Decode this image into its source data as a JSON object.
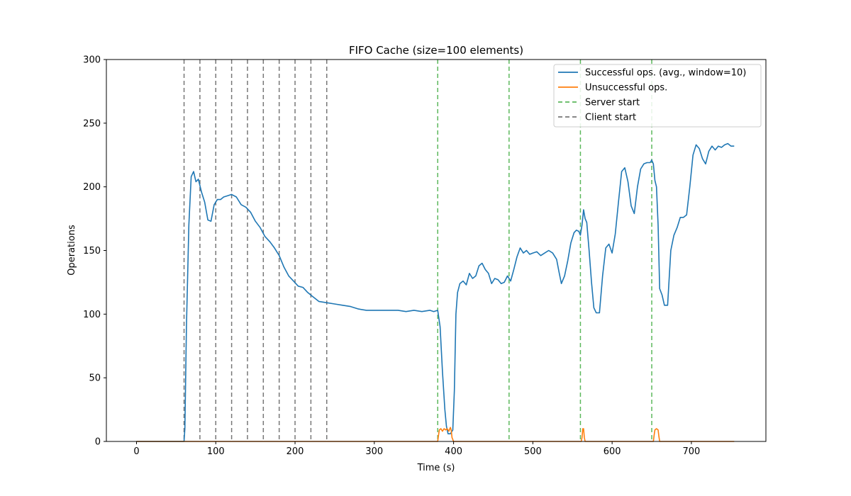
{
  "chart_data": {
    "type": "line",
    "title": "FIFO Cache (size=100 elements)",
    "xlabel": "Time (s)",
    "ylabel": "Operations",
    "xlim": [
      -38,
      794
    ],
    "ylim": [
      0,
      300
    ],
    "xticks": [
      0,
      100,
      200,
      300,
      400,
      500,
      600,
      700
    ],
    "yticks": [
      0,
      50,
      100,
      150,
      200,
      250,
      300
    ],
    "grid": false,
    "legend_position": "upper-right",
    "series": [
      {
        "name": "Successful ops. (avg., window=10)",
        "color": "#1f77b4",
        "style": "solid",
        "x": [
          0,
          60,
          61,
          63,
          66,
          69,
          72,
          75,
          78,
          82,
          86,
          90,
          94,
          98,
          102,
          106,
          110,
          115,
          120,
          126,
          132,
          138,
          144,
          150,
          156,
          162,
          168,
          174,
          180,
          186,
          192,
          198,
          204,
          210,
          216,
          222,
          230,
          240,
          250,
          260,
          270,
          280,
          290,
          300,
          310,
          320,
          330,
          340,
          350,
          360,
          370,
          375,
          380,
          383,
          386,
          389,
          391,
          393,
          396,
          399,
          401,
          403,
          405,
          408,
          412,
          416,
          420,
          424,
          428,
          432,
          436,
          440,
          444,
          448,
          452,
          456,
          460,
          464,
          468,
          472,
          476,
          480,
          484,
          488,
          492,
          496,
          500,
          505,
          510,
          515,
          520,
          525,
          530,
          533,
          536,
          540,
          544,
          548,
          552,
          555,
          558,
          560,
          562,
          564,
          566,
          568,
          571,
          574,
          577,
          580,
          584,
          588,
          592,
          596,
          600,
          604,
          608,
          612,
          616,
          620,
          624,
          628,
          632,
          636,
          640,
          644,
          648,
          650,
          652,
          654,
          656,
          658,
          660,
          663,
          666,
          670,
          674,
          678,
          682,
          686,
          690,
          694,
          698,
          702,
          706,
          710,
          714,
          718,
          722,
          726,
          730,
          734,
          738,
          742,
          746,
          750,
          754
        ],
        "y": [
          0,
          0,
          10,
          90,
          170,
          208,
          212,
          204,
          206,
          196,
          188,
          174,
          173,
          186,
          190,
          190,
          192,
          193,
          194,
          192,
          186,
          184,
          180,
          173,
          168,
          161,
          157,
          152,
          146,
          137,
          130,
          126,
          122,
          121,
          117,
          114,
          110,
          109,
          108,
          107,
          106,
          104,
          103,
          103,
          103,
          103,
          103,
          102,
          103,
          102,
          103,
          102,
          103,
          90,
          55,
          25,
          12,
          6,
          6,
          9,
          40,
          100,
          117,
          124,
          126,
          123,
          132,
          128,
          130,
          138,
          140,
          135,
          132,
          124,
          128,
          127,
          124,
          125,
          130,
          126,
          135,
          145,
          152,
          148,
          150,
          147,
          148,
          149,
          146,
          148,
          150,
          148,
          143,
          133,
          124,
          130,
          142,
          156,
          164,
          166,
          165,
          162,
          170,
          182,
          175,
          172,
          150,
          125,
          105,
          101,
          101,
          130,
          152,
          155,
          148,
          163,
          188,
          212,
          215,
          204,
          185,
          179,
          200,
          214,
          218,
          219,
          219,
          221,
          218,
          205,
          200,
          170,
          120,
          115,
          107,
          107,
          150,
          162,
          168,
          176,
          176,
          178,
          200,
          225,
          233,
          230,
          222,
          218,
          228,
          232,
          229,
          232,
          231,
          233,
          234,
          232,
          232
        ]
      },
      {
        "name": "Unsuccessful ops.",
        "color": "#ff7f0e",
        "style": "solid",
        "x": [
          0,
          380,
          381,
          382,
          384,
          386,
          388,
          390,
          392,
          394,
          396,
          397,
          398,
          400,
          561,
          562,
          563,
          564,
          565,
          566,
          652,
          653,
          654,
          656,
          658,
          659,
          660,
          754
        ],
        "y": [
          0,
          0,
          5,
          9,
          10,
          8,
          10,
          9,
          10,
          8,
          11,
          9,
          3,
          0,
          0,
          3,
          10,
          10,
          3,
          0,
          0,
          5,
          9,
          10,
          9,
          4,
          0,
          0
        ]
      }
    ],
    "vlines": [
      {
        "name": "Server start",
        "color": "#5cb85c",
        "style": "dashed",
        "x": [
          380,
          470,
          560,
          650
        ]
      },
      {
        "name": "Client start",
        "color": "#777777",
        "style": "dashed",
        "x": [
          60,
          80,
          100,
          120,
          140,
          160,
          180,
          200,
          220,
          240
        ]
      }
    ]
  }
}
